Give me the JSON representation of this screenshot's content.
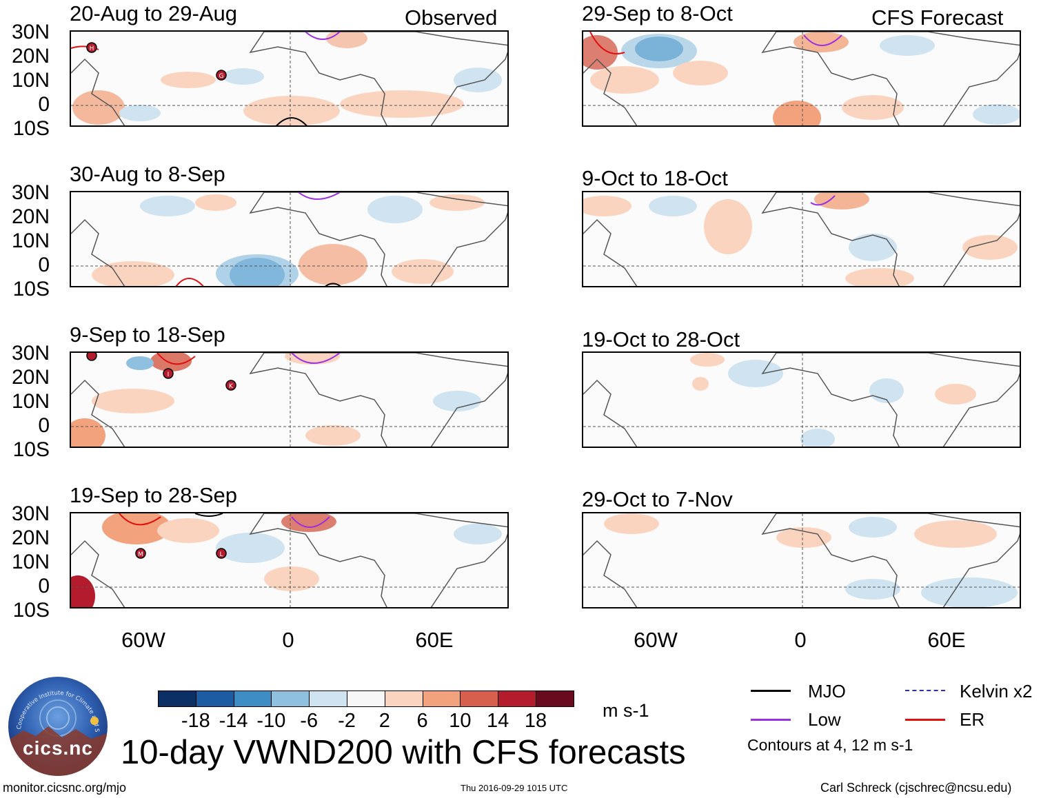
{
  "columns": {
    "left_header": "Observed",
    "right_header": "CFS Forecast"
  },
  "panels": {
    "p1": {
      "title": "20-Aug to 29-Aug"
    },
    "p2": {
      "title": "30-Aug to 8-Sep"
    },
    "p3": {
      "title": "9-Sep to 18-Sep"
    },
    "p4": {
      "title": "19-Sep to 28-Sep"
    },
    "p5": {
      "title": "29-Sep to 8-Oct"
    },
    "p6": {
      "title": "9-Oct to 18-Oct"
    },
    "p7": {
      "title": "19-Oct to 28-Oct"
    },
    "p8": {
      "title": "29-Oct to 7-Nov"
    }
  },
  "latitude_labels": [
    "30N",
    "20N",
    "10N",
    "0",
    "10S"
  ],
  "longitude_labels": [
    "60W",
    "0",
    "60E"
  ],
  "storm_labels": {
    "p1": [
      "H",
      "G"
    ],
    "p3": [
      "I",
      "K"
    ],
    "p4": [
      "M",
      "L"
    ]
  },
  "colorbar": {
    "colors": [
      "#0b2f64",
      "#1d5ba3",
      "#3d8cc4",
      "#8fc0df",
      "#cfe3f1",
      "#f7f7f7",
      "#fbd4c0",
      "#f2a27d",
      "#d6604d",
      "#b41b2c",
      "#6a0a1e"
    ],
    "labels": [
      "-18",
      "-14",
      "-10",
      "-6",
      "-2",
      "2",
      "6",
      "10",
      "14",
      "18"
    ],
    "units": "m s-1"
  },
  "legend": {
    "items": [
      {
        "label": "MJO",
        "color": "#000000"
      },
      {
        "label": "Kelvin x2",
        "color": "#2a2ad8"
      },
      {
        "label": "Low",
        "color": "#9b30e0"
      },
      {
        "label": "ER",
        "color": "#e01010"
      }
    ],
    "contours_note": "Contours at 4, 12 m s-1"
  },
  "main_title": "10-day VWND200 with CFS forecasts",
  "footer": {
    "website": "monitor.cicsnc.org/mjo",
    "timestamp": "Thu 2016-09-29 1015 UTC",
    "author": "Carl Schreck (cjschrec@ncsu.edu)"
  },
  "logo": {
    "text": "cics.nc",
    "arc_text": "Cooperative Institute for Climate and Satellites"
  }
}
